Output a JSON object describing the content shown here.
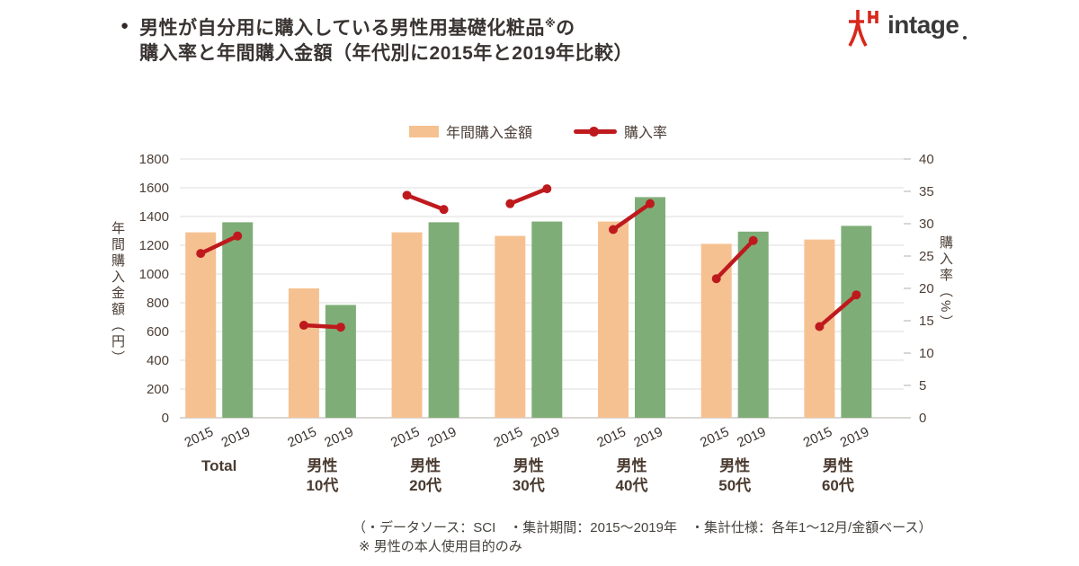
{
  "header": {
    "bullet": "●",
    "title_line1": "男性が自分用に購入している男性用基礎化粧品",
    "title_sup": "※",
    "title_line1_suffix": "の",
    "title_line2": "購入率と年間購入金額（年代別に2015年と2019年比較）"
  },
  "logo": {
    "text": "intage"
  },
  "legend": {
    "bar_label": "年間購入金額",
    "line_label": "購入率"
  },
  "footer": {
    "line1": "（・データソース：SCI　・集計期間：2015～2019年　・集計仕様：各年1～12月/金額ベース）",
    "line2": "※ 男性の本人使用目的のみ"
  },
  "colors": {
    "bar_2015": "#F6C191",
    "bar_2019": "#7FAD77",
    "line": "#BE1A1E",
    "grid": "#DCDCDC",
    "axis_line": "#B5AFA9",
    "axis_text": "#4E4038",
    "category_text": "#4A3A2F",
    "title_text": "#393432",
    "logo_red": "#D8281C"
  },
  "chart_data": {
    "type": "combo_bar_line",
    "title": "男性が自分用に購入している男性用基礎化粧品の購入率と年間購入金額（年代別に2015年と2019年比較）",
    "categories": [
      [
        "Total"
      ],
      [
        "男性",
        "10代"
      ],
      [
        "男性",
        "20代"
      ],
      [
        "男性",
        "30代"
      ],
      [
        "男性",
        "40代"
      ],
      [
        "男性",
        "50代"
      ],
      [
        "男性",
        "60代"
      ]
    ],
    "x_sublabels": [
      "2015",
      "2019"
    ],
    "series": [
      {
        "name": "年間購入金額 2015",
        "type": "bar",
        "axis": "left",
        "values": [
          1290,
          900,
          1290,
          1265,
          1365,
          1210,
          1240
        ]
      },
      {
        "name": "年間購入金額 2019",
        "type": "bar",
        "axis": "left",
        "values": [
          1360,
          785,
          1360,
          1365,
          1535,
          1295,
          1335
        ]
      },
      {
        "name": "購入率 2015",
        "type": "line",
        "axis": "right",
        "values": [
          25.4,
          14.3,
          34.4,
          33.1,
          29.1,
          21.5,
          14.1
        ]
      },
      {
        "name": "購入率 2019",
        "type": "line",
        "axis": "right",
        "values": [
          28.1,
          14.0,
          32.2,
          35.4,
          33.1,
          27.4,
          19.0
        ]
      }
    ],
    "left_axis": {
      "title": "年間購入金額（円）",
      "min": 0,
      "max": 1800,
      "step": 200
    },
    "right_axis": {
      "title": "購入率（%）",
      "min": 0,
      "max": 40,
      "step": 5
    },
    "grid": true,
    "legend_position": "top-center"
  }
}
